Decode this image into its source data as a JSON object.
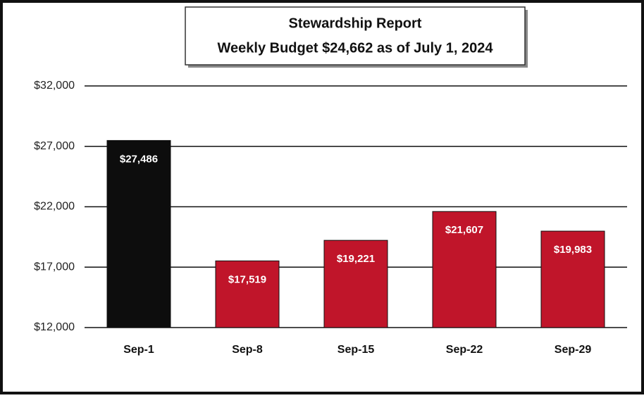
{
  "chart_data": {
    "type": "bar",
    "title": "Stewardship Report",
    "subtitle": "Weekly Budget $24,662 as of July 1, 2024",
    "categories": [
      "Sep-1",
      "Sep-8",
      "Sep-15",
      "Sep-22",
      "Sep-29"
    ],
    "values": [
      27486,
      17519,
      19221,
      21607,
      19983
    ],
    "value_labels": [
      "$27,486",
      "$17,519",
      "$19,221",
      "$21,607",
      "$19,983"
    ],
    "colors": [
      "#0d0d0d",
      "#c0152a",
      "#c0152a",
      "#c0152a",
      "#c0152a"
    ],
    "ylim": [
      12000,
      32000
    ],
    "yticks": [
      {
        "value": 12000,
        "label": "$12,000"
      },
      {
        "value": 17000,
        "label": "$17,000"
      },
      {
        "value": 22000,
        "label": "$22,000"
      },
      {
        "value": 27000,
        "label": "$27,000"
      },
      {
        "value": 32000,
        "label": "$32,000"
      }
    ],
    "grid": true
  }
}
